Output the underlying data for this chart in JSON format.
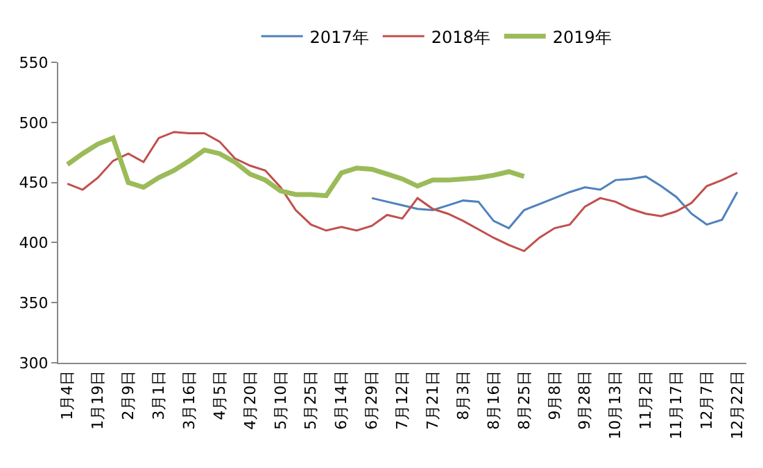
{
  "chart_data": {
    "type": "line",
    "categories": [
      "1月4日",
      null,
      "1月19日",
      null,
      "2月9日",
      null,
      "3月1日",
      null,
      "3月16日",
      null,
      "4月5日",
      null,
      "4月20日",
      null,
      "5月10日",
      null,
      "5月25日",
      null,
      "6月14日",
      null,
      "6月29日",
      null,
      "7月12日",
      null,
      "7月21日",
      null,
      "8月3日",
      null,
      "8月16日",
      null,
      "8月25日",
      null,
      "9月8日",
      null,
      "9月28日",
      null,
      "10月13日",
      null,
      "11月2日",
      null,
      "11月17日",
      null,
      "12月7日",
      null,
      "12月22日"
    ],
    "series": [
      {
        "name": "2017年",
        "color": "#4f81bd",
        "values": [
          null,
          null,
          null,
          null,
          null,
          null,
          null,
          null,
          null,
          null,
          null,
          null,
          null,
          null,
          null,
          null,
          null,
          null,
          null,
          null,
          437,
          434,
          431,
          428,
          427,
          431,
          435,
          434,
          418,
          412,
          427,
          432,
          437,
          442,
          446,
          444,
          452,
          453,
          455,
          447,
          438,
          424,
          415,
          419,
          442
        ]
      },
      {
        "name": "2018年",
        "color": "#c0504d",
        "values": [
          449,
          444,
          454,
          468,
          474,
          467,
          487,
          492,
          491,
          491,
          484,
          470,
          464,
          460,
          446,
          427,
          415,
          410,
          413,
          410,
          414,
          423,
          420,
          437,
          428,
          424,
          418,
          411,
          404,
          398,
          393,
          404,
          412,
          415,
          430,
          437,
          434,
          428,
          424,
          422,
          426,
          433,
          447,
          452,
          458
        ]
      },
      {
        "name": "2019年",
        "color": "#9bbb59",
        "values": [
          465,
          474,
          482,
          487,
          450,
          446,
          454,
          460,
          468,
          477,
          474,
          467,
          457,
          452,
          443,
          440,
          440,
          439,
          458,
          462,
          461,
          457,
          453,
          447,
          452,
          452,
          453,
          454,
          456,
          459,
          455,
          null,
          null,
          null,
          null,
          null,
          null,
          null,
          null,
          null,
          null,
          null,
          null,
          null,
          null
        ]
      }
    ],
    "ylim": [
      300,
      550
    ],
    "yticks": [
      300,
      350,
      400,
      450,
      500,
      550
    ],
    "legend": "top",
    "marker": "none",
    "line_style": "solid"
  }
}
